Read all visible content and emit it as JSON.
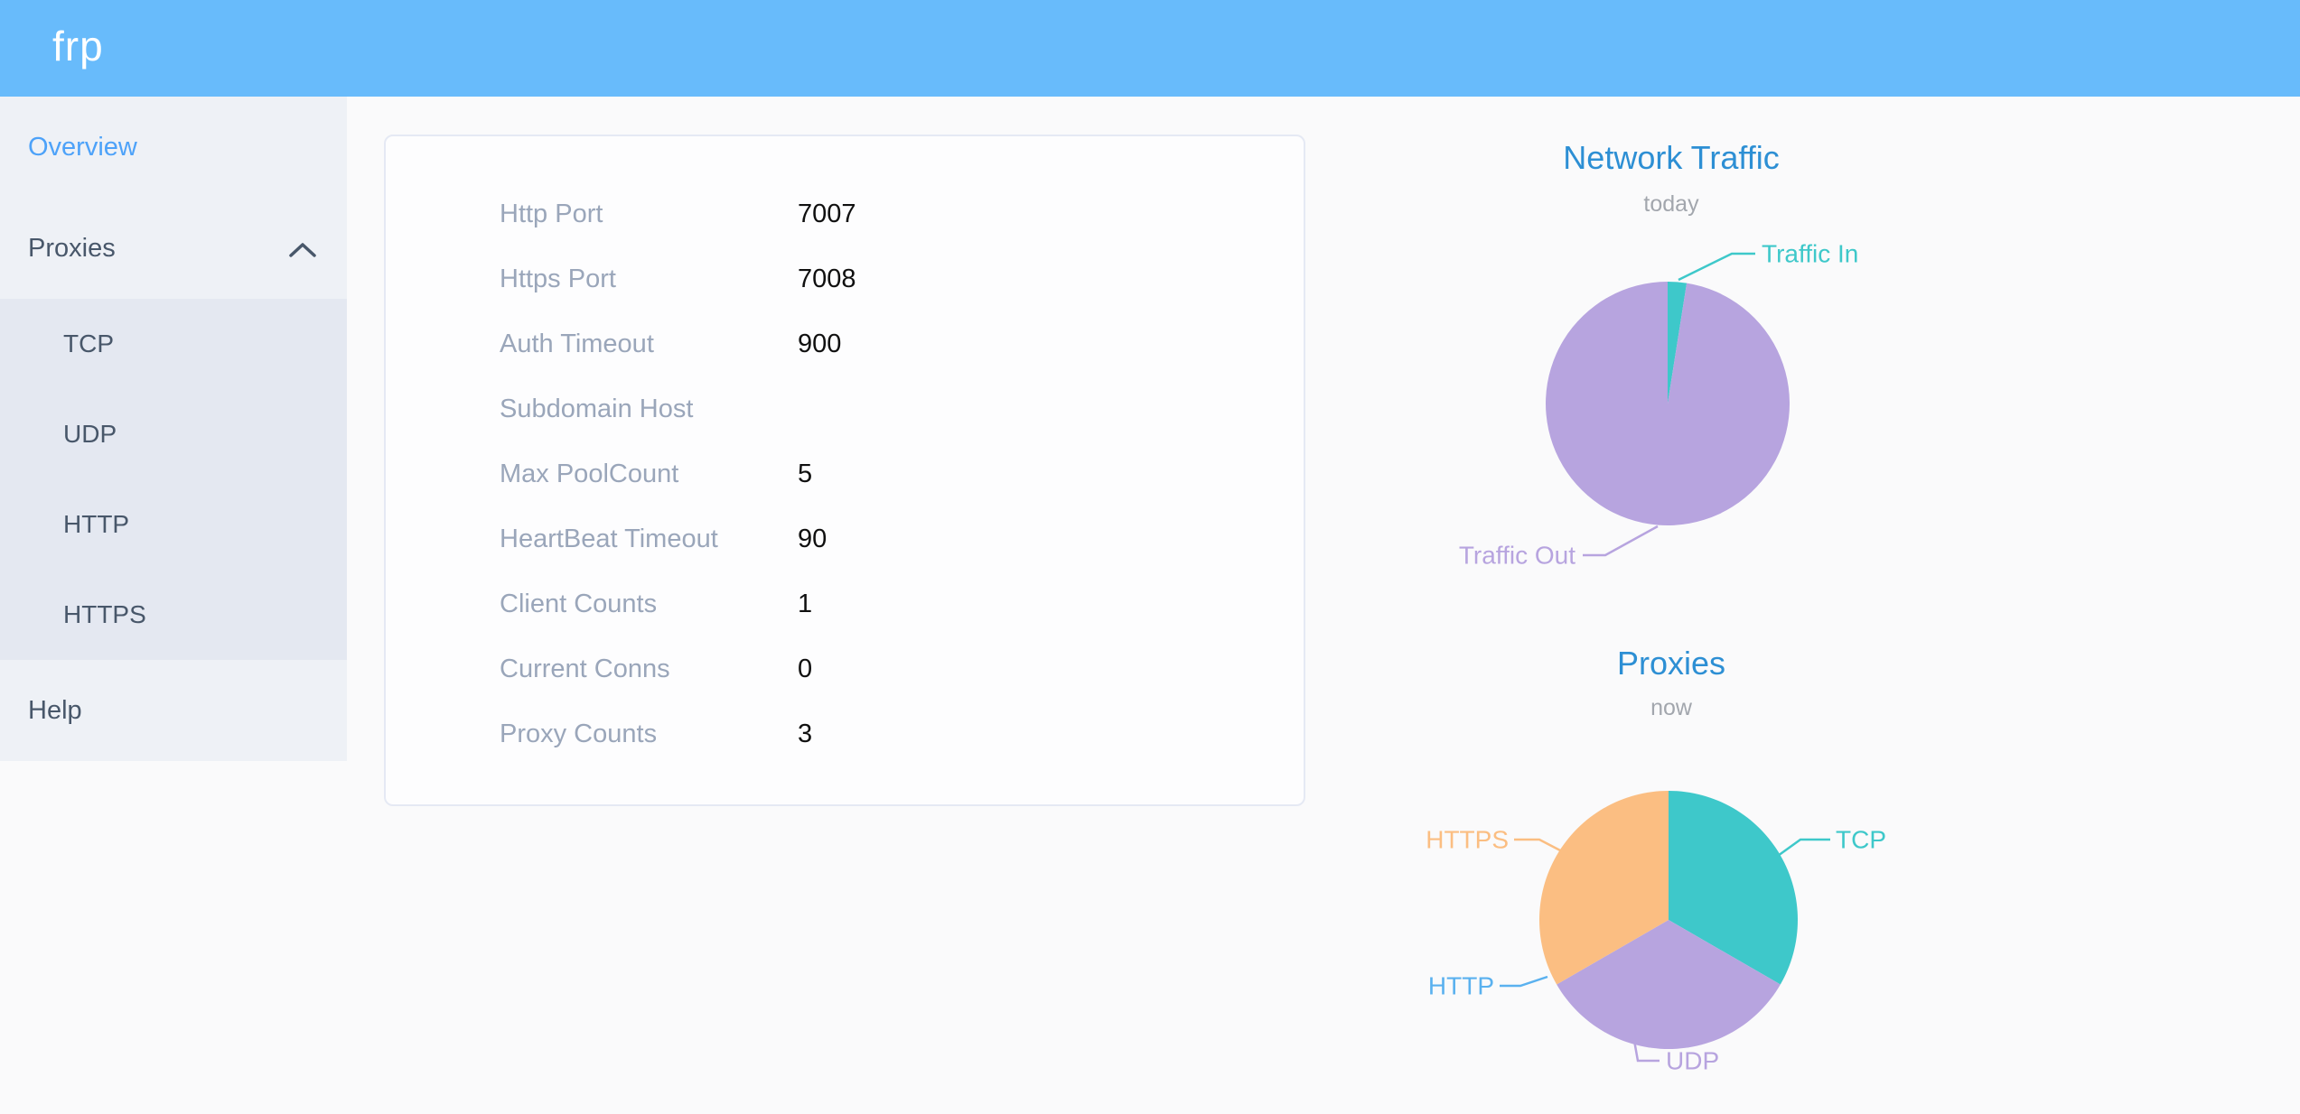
{
  "header": {
    "logo": "frp"
  },
  "sidebar": {
    "items": [
      {
        "label": "Overview",
        "active": true
      },
      {
        "label": "Proxies",
        "expanded": true
      },
      {
        "label": "Help",
        "active": false
      }
    ],
    "proxies_children": [
      {
        "label": "TCP"
      },
      {
        "label": "UDP"
      },
      {
        "label": "HTTP"
      },
      {
        "label": "HTTPS"
      }
    ]
  },
  "overview_panel": {
    "rows": [
      {
        "label": "Http Port",
        "value": "7007"
      },
      {
        "label": "Https Port",
        "value": "7008"
      },
      {
        "label": "Auth Timeout",
        "value": "900"
      },
      {
        "label": "Subdomain Host",
        "value": ""
      },
      {
        "label": "Max PoolCount",
        "value": "5"
      },
      {
        "label": "HeartBeat Timeout",
        "value": "90"
      },
      {
        "label": "Client Counts",
        "value": "1"
      },
      {
        "label": "Current Conns",
        "value": "0"
      },
      {
        "label": "Proxy Counts",
        "value": "3"
      }
    ]
  },
  "chart_data": [
    {
      "type": "pie",
      "title": "Network Traffic",
      "subtitle": "today",
      "legend_position": "callout-labels",
      "slices": [
        {
          "label": "Traffic In",
          "value": 2.5,
          "unit": "percent-estimate",
          "color": "#3ec8ca"
        },
        {
          "label": "Traffic Out",
          "value": 97.5,
          "unit": "percent-estimate",
          "color": "#b7a4df"
        }
      ]
    },
    {
      "type": "pie",
      "title": "Proxies",
      "subtitle": "now",
      "legend_position": "callout-labels",
      "slices": [
        {
          "label": "TCP",
          "value": 1,
          "color": "#3ec8ca"
        },
        {
          "label": "UDP",
          "value": 1,
          "color": "#b7a4df"
        },
        {
          "label": "HTTP",
          "value": 0,
          "color": "#5ab1ef"
        },
        {
          "label": "HTTPS",
          "value": 1,
          "color": "#fbbe82"
        }
      ]
    }
  ],
  "colors": {
    "header_bg": "#68bbfb",
    "sidebar_bg": "#eef1f6",
    "submenu_bg": "#e4e8f1",
    "sidebar_text": "#48576a",
    "active_item": "#4da2f9",
    "chart_title": "#2d8fd4",
    "panel_label": "#9aa6ba",
    "panel_value": "#101010"
  }
}
